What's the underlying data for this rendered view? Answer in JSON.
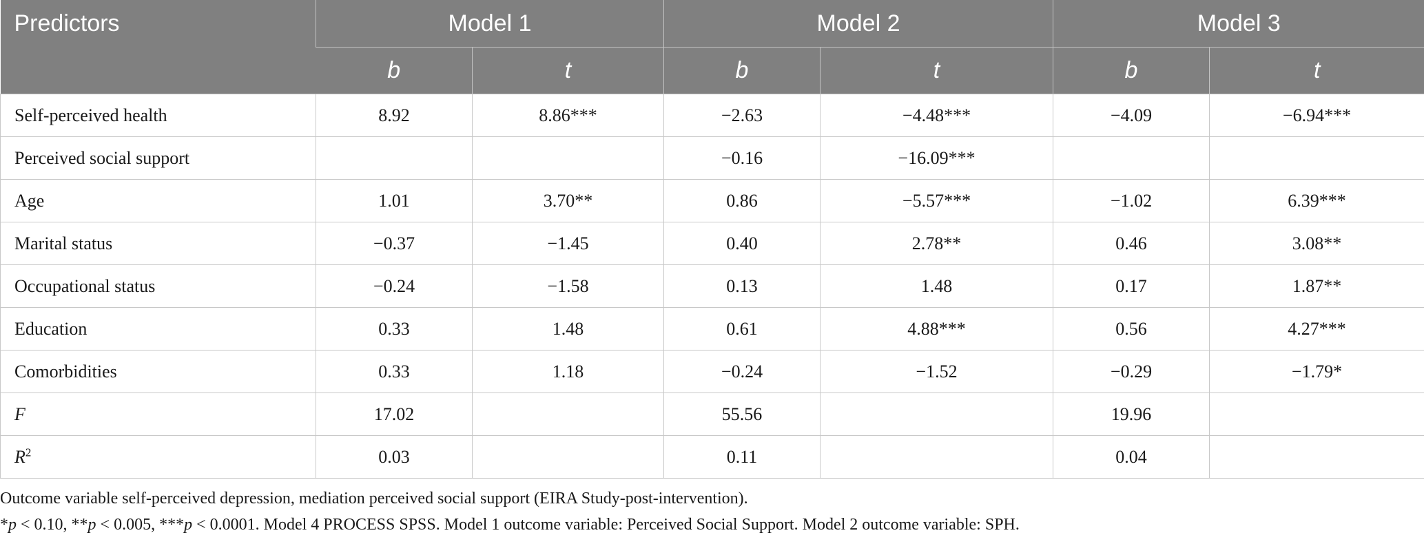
{
  "table": {
    "header": {
      "predictors": "Predictors",
      "models": [
        "Model 1",
        "Model 2",
        "Model 3"
      ],
      "sub": [
        "b",
        "t",
        "b",
        "t",
        "b",
        "t"
      ]
    },
    "rows": [
      {
        "label": "Self-perceived health",
        "label_style": "normal",
        "cells": [
          "8.92",
          "8.86***",
          "−2.63",
          "−4.48***",
          "−4.09",
          "−6.94***"
        ]
      },
      {
        "label": "Perceived social support",
        "label_style": "normal",
        "cells": [
          "",
          "",
          "−0.16",
          "−16.09***",
          "",
          ""
        ]
      },
      {
        "label": "Age",
        "label_style": "normal",
        "cells": [
          "1.01",
          "3.70**",
          "0.86",
          "−5.57***",
          "−1.02",
          "6.39***"
        ]
      },
      {
        "label": "Marital status",
        "label_style": "normal",
        "cells": [
          "−0.37",
          "−1.45",
          "0.40",
          "2.78**",
          "0.46",
          "3.08**"
        ]
      },
      {
        "label": "Occupational status",
        "label_style": "normal",
        "cells": [
          "−0.24",
          "−1.58",
          "0.13",
          "1.48",
          "0.17",
          "1.87**"
        ]
      },
      {
        "label": "Education",
        "label_style": "normal",
        "cells": [
          "0.33",
          "1.48",
          "0.61",
          "4.88***",
          "0.56",
          "4.27***"
        ]
      },
      {
        "label": "Comorbidities",
        "label_style": "normal",
        "cells": [
          "0.33",
          "1.18",
          "−0.24",
          "−1.52",
          "−0.29",
          "−1.79*"
        ]
      },
      {
        "label": "F",
        "label_style": "italic",
        "cells": [
          "17.02",
          "",
          "55.56",
          "",
          "19.96",
          ""
        ]
      },
      {
        "label": "R",
        "label_sup": "2",
        "label_style": "italic",
        "cells": [
          "0.03",
          "",
          "0.11",
          "",
          "0.04",
          ""
        ]
      }
    ]
  },
  "notes": {
    "line1": "Outcome variable self-perceived depression, mediation perceived social support (EIRA Study-post-intervention).",
    "line2_parts": [
      {
        "text": "*",
        "italic": false
      },
      {
        "text": "p",
        "italic": true
      },
      {
        "text": " < 0.10, **",
        "italic": false
      },
      {
        "text": "p",
        "italic": true
      },
      {
        "text": " < 0.005, ***",
        "italic": false
      },
      {
        "text": "p",
        "italic": true
      },
      {
        "text": " < 0.0001. Model 4 PROCESS SPSS. Model 1 outcome variable: Perceived Social Support. Model 2 outcome variable: SPH.",
        "italic": false
      }
    ]
  }
}
